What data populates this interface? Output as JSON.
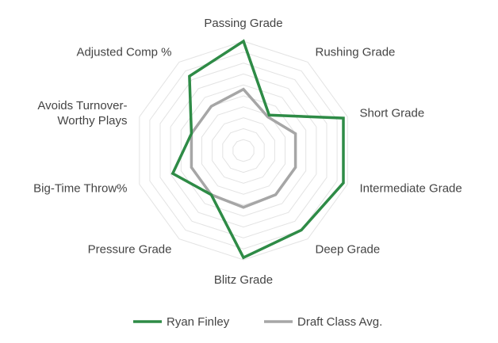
{
  "chart_data": {
    "type": "radar",
    "categories": [
      "Passing Grade",
      "Rushing Grade",
      "Short Grade",
      "Intermediate Grade",
      "Deep Grade",
      "Blitz Grade",
      "Pressure Grade",
      "Big-Time Throw%",
      "Avoids Turnover-\nWorthy Plays",
      "Adjusted Comp %"
    ],
    "rlim": [
      0,
      100
    ],
    "grid": true,
    "series": [
      {
        "name": "Ryan Finley",
        "color": "#2e8b46",
        "values": [
          100,
          40,
          96,
          96,
          90,
          98,
          50,
          68,
          50,
          84
        ]
      },
      {
        "name": "Draft Class Avg.",
        "color": "#a6a6a6",
        "values": [
          56,
          38,
          50,
          50,
          50,
          52,
          50,
          50,
          50,
          50
        ]
      }
    ],
    "legend_position": "bottom"
  }
}
